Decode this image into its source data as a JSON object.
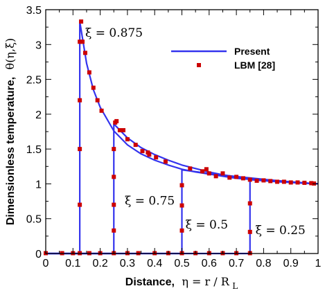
{
  "chart_data": {
    "type": "line",
    "xlabel_prefix": "Distance,",
    "xlabel_symbol": "η = r / R",
    "xlabel_subscript": "L",
    "ylabel_prefix": "Dimensionless temperature,",
    "ylabel_symbol": "θ(η,ξ)",
    "xlim": [
      0,
      1
    ],
    "ylim": [
      0,
      3.5
    ],
    "xticks": [
      0,
      0.1,
      0.2,
      0.3,
      0.4,
      0.5,
      0.6,
      0.7,
      0.8,
      0.9,
      1
    ],
    "xtick_labels": [
      "0",
      "0.1",
      "0.2",
      "0.3",
      "0.4",
      "0.5",
      "0.6",
      "0.7",
      "0.8",
      "0.9",
      "1"
    ],
    "yticks": [
      0,
      0.5,
      1,
      1.5,
      2,
      2.5,
      3,
      3.5
    ],
    "ytick_labels": [
      "0",
      "0.5",
      "1",
      "1.5",
      "2",
      "2.5",
      "3",
      "3.5"
    ],
    "grid": false,
    "legend_position": "top-right",
    "colors": {
      "present": "#3333ee",
      "lbm": "#cc0000"
    },
    "series": [
      {
        "name": "Present",
        "style": "line",
        "curves": [
          {
            "label": "ξ = 0.875",
            "x": [
              0,
              0.125,
              0.125,
              0.15,
              0.175,
              0.2,
              0.25,
              0.3,
              0.35,
              0.4,
              0.45,
              0.5,
              0.55,
              0.6,
              0.65,
              0.7,
              0.75,
              0.8,
              0.85,
              0.9,
              0.95,
              1.0
            ],
            "y": [
              0,
              0,
              3.33,
              2.73,
              2.35,
              2.1,
              1.76,
              1.56,
              1.43,
              1.34,
              1.27,
              1.21,
              1.17,
              1.14,
              1.11,
              1.08,
              1.065,
              1.05,
              1.035,
              1.022,
              1.01,
              1.0
            ]
          },
          {
            "label": "ξ = 0.75",
            "x": [
              0,
              0.25,
              0.25,
              0.3,
              0.35,
              0.4,
              0.45,
              0.5,
              0.55,
              0.6,
              0.65,
              0.7,
              0.75,
              0.8,
              0.85,
              0.9,
              0.95,
              1.0
            ],
            "y": [
              0,
              0,
              1.86,
              1.66,
              1.52,
              1.42,
              1.34,
              1.27,
              1.22,
              1.17,
              1.13,
              1.1,
              1.075,
              1.055,
              1.04,
              1.025,
              1.012,
              1.0
            ]
          },
          {
            "label": "ξ = 0.5",
            "x": [
              0,
              0.5,
              0.5,
              0.55,
              0.6,
              0.65,
              0.7,
              0.75,
              0.8,
              0.85,
              0.9,
              0.95,
              1.0
            ],
            "y": [
              0,
              0,
              1.2,
              1.175,
              1.15,
              1.125,
              1.105,
              1.085,
              1.065,
              1.047,
              1.03,
              1.015,
              1.0
            ]
          },
          {
            "label": "ξ = 0.25",
            "x": [
              0,
              0.75,
              0.75,
              0.8,
              0.85,
              0.9,
              0.95,
              1.0
            ],
            "y": [
              0,
              0,
              1.06,
              1.045,
              1.03,
              1.02,
              1.01,
              1.0
            ]
          }
        ]
      },
      {
        "name": "LBM [28]",
        "style": "markers",
        "points": [
          [
            0,
            0.005
          ],
          [
            0.06,
            0.005
          ],
          [
            0.1,
            0.005
          ],
          [
            0.125,
            0.005
          ],
          [
            0.16,
            0.005
          ],
          [
            0.2,
            0.005
          ],
          [
            0.25,
            0.005
          ],
          [
            0.3,
            0.005
          ],
          [
            0.34,
            0.005
          ],
          [
            0.4,
            0.005
          ],
          [
            0.45,
            0.005
          ],
          [
            0.5,
            0.005
          ],
          [
            0.55,
            0.005
          ],
          [
            0.6,
            0.005
          ],
          [
            0.65,
            0.005
          ],
          [
            0.7,
            0.005
          ],
          [
            0.75,
            0.005
          ],
          [
            0.125,
            0.7
          ],
          [
            0.125,
            1.5
          ],
          [
            0.125,
            2.2
          ],
          [
            0.125,
            3.04
          ],
          [
            0.13,
            3.33
          ],
          [
            0.135,
            3.04
          ],
          [
            0.145,
            2.88
          ],
          [
            0.16,
            2.6
          ],
          [
            0.175,
            2.38
          ],
          [
            0.19,
            2.2
          ],
          [
            0.205,
            2.05
          ],
          [
            0.25,
            0.33
          ],
          [
            0.25,
            0.7
          ],
          [
            0.25,
            1.1
          ],
          [
            0.25,
            1.5
          ],
          [
            0.255,
            1.88
          ],
          [
            0.26,
            1.9
          ],
          [
            0.272,
            1.77
          ],
          [
            0.285,
            1.77
          ],
          [
            0.3,
            1.64
          ],
          [
            0.33,
            1.56
          ],
          [
            0.355,
            1.47
          ],
          [
            0.375,
            1.45
          ],
          [
            0.38,
            1.42
          ],
          [
            0.405,
            1.38
          ],
          [
            0.44,
            1.32
          ],
          [
            0.5,
            0.33
          ],
          [
            0.5,
            0.69
          ],
          [
            0.5,
            0.98
          ],
          [
            0.53,
            1.22
          ],
          [
            0.575,
            1.18
          ],
          [
            0.59,
            1.21
          ],
          [
            0.6,
            1.15
          ],
          [
            0.625,
            1.11
          ],
          [
            0.65,
            1.15
          ],
          [
            0.675,
            1.09
          ],
          [
            0.7,
            1.1
          ],
          [
            0.725,
            1.08
          ],
          [
            0.75,
            1.06
          ],
          [
            0.75,
            0.31
          ],
          [
            0.75,
            0.72
          ],
          [
            0.775,
            1.045
          ],
          [
            0.8,
            1.05
          ],
          [
            0.825,
            1.04
          ],
          [
            0.85,
            1.03
          ],
          [
            0.875,
            1.03
          ],
          [
            0.9,
            1.02
          ],
          [
            0.925,
            1.02
          ],
          [
            0.95,
            1.015
          ],
          [
            0.975,
            1.01
          ],
          [
            0.985,
            1.005
          ]
        ]
      }
    ],
    "annotations": [
      {
        "text": "ξ = 0.875",
        "x": 0.145,
        "y": 3.17
      },
      {
        "text": "ξ = 0.75",
        "x": 0.29,
        "y": 0.76
      },
      {
        "text": "ξ = 0.5",
        "x": 0.513,
        "y": 0.42
      },
      {
        "text": "ξ = 0.25",
        "x": 0.77,
        "y": 0.34
      }
    ]
  }
}
